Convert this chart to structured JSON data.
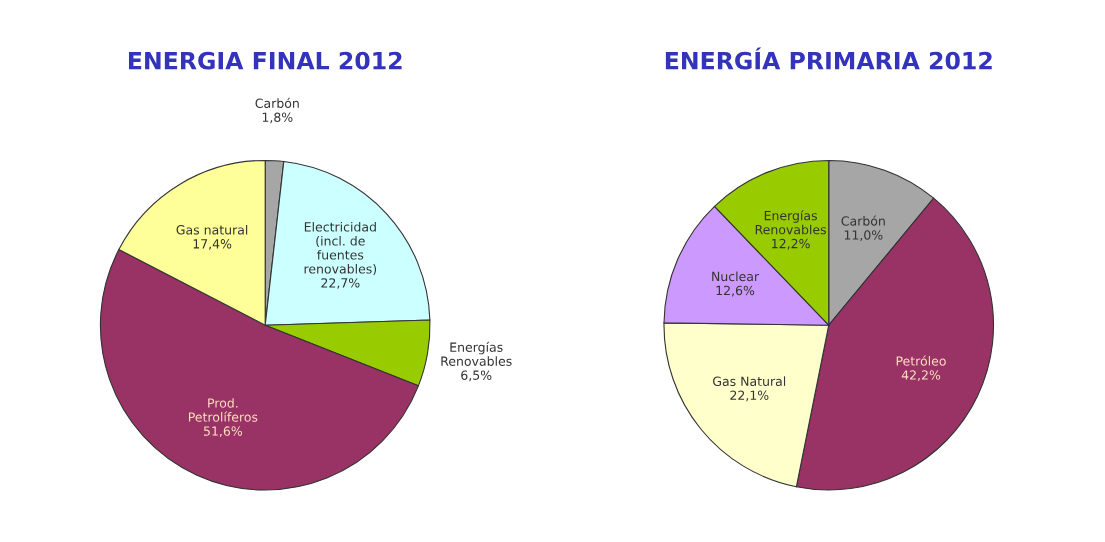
{
  "chart_data": [
    {
      "type": "pie",
      "title": "ENERGIA FINAL 2012",
      "categories": [
        "Carbón",
        "Electricidad\n(incl. de\nfuentes\nrenovables)",
        "Energías\nRenovables",
        "Prod.\nPetrolíferos",
        "Gas natural"
      ],
      "values": [
        1.8,
        22.7,
        6.5,
        51.6,
        17.4
      ],
      "value_labels": [
        "1,8%",
        "22,7%",
        "6,5%",
        "51,6%",
        "17,4%"
      ],
      "colors": [
        "#a6a6a6",
        "#ccffff",
        "#99cc00",
        "#993366",
        "#ffff99"
      ]
    },
    {
      "type": "pie",
      "title": "ENERGÍA PRIMARIA 2012",
      "categories": [
        "Carbón",
        "Petróleo",
        "Gas Natural",
        "Nuclear",
        "Energías\nRenovables"
      ],
      "values": [
        11.0,
        42.2,
        22.1,
        12.6,
        12.2
      ],
      "value_labels": [
        "11,0%",
        "42,2%",
        "22,1%",
        "12,6%",
        "12,2%"
      ],
      "colors": [
        "#a6a6a6",
        "#993366",
        "#ffffcc",
        "#cc99ff",
        "#99cc00"
      ]
    }
  ]
}
